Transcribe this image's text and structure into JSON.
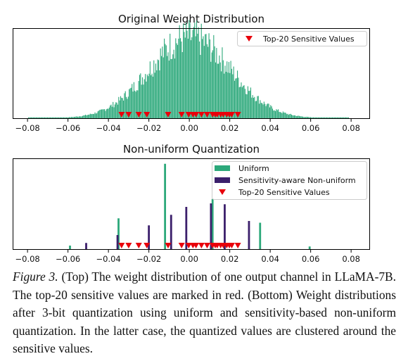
{
  "colors": {
    "uniform": "#2ca87a",
    "nonuniform": "#3b1f6b",
    "sensitive": "#e8000b",
    "histogram": "#2ca87a"
  },
  "chart_data": [
    {
      "type": "bar",
      "title": "Original Weight Distribution",
      "xlim": [
        -0.087,
        0.089
      ],
      "ylim": [
        0,
        1
      ],
      "xticks": [
        -0.08,
        -0.06,
        -0.04,
        -0.02,
        0.0,
        0.02,
        0.04,
        0.06,
        0.08
      ],
      "xtick_labels": [
        "−0.08",
        "−0.06",
        "−0.04",
        "−0.02",
        "0.00",
        "0.02",
        "0.04",
        "0.06",
        "0.08"
      ],
      "histogram": {
        "distribution": "approximately normal",
        "mean": 0.0,
        "std": 0.02,
        "peak_x": 0.0
      },
      "sensitive_values": [
        -0.0335,
        -0.03,
        -0.025,
        -0.021,
        -0.0105,
        -0.0038,
        -0.0003,
        0.0018,
        0.0033,
        0.006,
        0.0088,
        0.0115,
        0.0128,
        0.0138,
        0.0155,
        0.0168,
        0.0185,
        0.0198,
        0.021,
        0.024
      ],
      "legend": [
        {
          "label": "Top-20 Sensitive Values",
          "marker": "triangle-down"
        }
      ],
      "legend_position": "top-right",
      "grid": false
    },
    {
      "type": "bar",
      "title": "Non-uniform Quantization",
      "xlim": [
        -0.087,
        0.089
      ],
      "ylim": [
        0,
        1
      ],
      "xticks": [
        -0.08,
        -0.06,
        -0.04,
        -0.02,
        0.0,
        0.02,
        0.04,
        0.06,
        0.08
      ],
      "xtick_labels": [
        "−0.08",
        "−0.06",
        "−0.04",
        "−0.02",
        "0.00",
        "0.02",
        "0.04",
        "0.06",
        "0.08"
      ],
      "series": [
        {
          "name": "Uniform",
          "x": [
            -0.059,
            -0.035,
            -0.012,
            0.0115,
            0.035,
            0.0595
          ],
          "values": [
            0.04,
            0.35,
            0.97,
            0.57,
            0.3,
            0.03
          ]
        },
        {
          "name": "Sensitivity-aware Non-uniform",
          "x": [
            -0.051,
            -0.0355,
            -0.02,
            -0.009,
            -0.0015,
            0.0107,
            0.0175,
            0.0295
          ],
          "values": [
            0.07,
            0.16,
            0.27,
            0.39,
            0.48,
            0.52,
            0.51,
            0.32
          ]
        }
      ],
      "sensitive_values": [
        -0.0335,
        -0.03,
        -0.025,
        -0.021,
        -0.0105,
        -0.0038,
        -0.0003,
        0.0018,
        0.0033,
        0.006,
        0.0088,
        0.0115,
        0.0128,
        0.0138,
        0.0155,
        0.0168,
        0.0185,
        0.0198,
        0.021,
        0.024
      ],
      "legend": [
        {
          "label": "Uniform",
          "marker": "patch"
        },
        {
          "label": "Sensitivity-aware Non-uniform",
          "marker": "patch"
        },
        {
          "label": "Top-20 Sensitive Values",
          "marker": "triangle-down"
        }
      ],
      "legend_position": "top-right",
      "grid": false
    }
  ],
  "caption": {
    "label": "Figure 3.",
    "text": " (Top) The weight distribution of one output channel in LLaMA-7B. The top-20 sensitive values are marked in red. (Bottom) Weight distributions after 3-bit quantization using uniform and sensitivity-based non-uniform quantization. In the latter case, the quantized values are clustered around the sensitive values."
  }
}
